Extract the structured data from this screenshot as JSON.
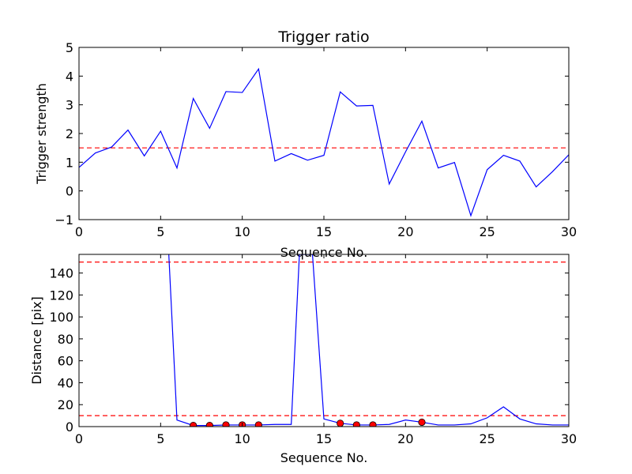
{
  "chart_data": [
    {
      "type": "line",
      "title": "Trigger ratio",
      "xlabel": "Sequence No.",
      "ylabel": "Trigger strength",
      "xlim": [
        0,
        30
      ],
      "ylim": [
        -1,
        5
      ],
      "xticks": [
        0,
        5,
        10,
        15,
        20,
        25,
        30
      ],
      "yticks": [
        -1,
        0,
        1,
        2,
        3,
        4,
        5
      ],
      "xtick_labels": [
        "0",
        "5",
        "10",
        "15",
        "20",
        "25",
        "30"
      ],
      "ytick_labels": [
        "−1",
        "0",
        "1",
        "2",
        "3",
        "4",
        "5"
      ],
      "grid": false,
      "series": [
        {
          "color": "#0000ff",
          "x": [
            0,
            1,
            2,
            3,
            4,
            5,
            6,
            7,
            8,
            9,
            10,
            11,
            12,
            13,
            14,
            15,
            16,
            17,
            18,
            19,
            20,
            21,
            22,
            23,
            24,
            25,
            26,
            27,
            28,
            29,
            30
          ],
          "values": [
            0.82,
            1.32,
            1.53,
            2.12,
            1.22,
            2.08,
            0.8,
            3.22,
            2.18,
            3.46,
            3.43,
            4.25,
            1.04,
            1.3,
            1.07,
            1.24,
            3.45,
            2.96,
            2.98,
            0.24,
            1.36,
            2.43,
            0.8,
            0.99,
            -0.86,
            0.74,
            1.24,
            1.04,
            0.14,
            0.67,
            1.26
          ]
        }
      ],
      "hlines": [
        {
          "y": 1.5,
          "color": "#ff0000",
          "style": "dashed"
        }
      ]
    },
    {
      "type": "line",
      "title": "",
      "xlabel": "Sequence No.",
      "ylabel": "Distance [pix]",
      "xlim": [
        0,
        30
      ],
      "ylim": [
        0,
        157
      ],
      "xticks": [
        0,
        5,
        10,
        15,
        20,
        25,
        30
      ],
      "yticks": [
        0,
        20,
        40,
        60,
        80,
        100,
        120,
        140
      ],
      "xtick_labels": [
        "0",
        "5",
        "10",
        "15",
        "20",
        "25",
        "30"
      ],
      "ytick_labels": [
        "0",
        "20",
        "40",
        "60",
        "80",
        "100",
        "120",
        "140"
      ],
      "grid": false,
      "series": [
        {
          "color": "#0000ff",
          "x": [
            5.5,
            6,
            7,
            8,
            9,
            10,
            11,
            12,
            13,
            13.5,
            14.3,
            15,
            16,
            17,
            18,
            19,
            20,
            21,
            22,
            23,
            24,
            25,
            26,
            27,
            28,
            29,
            30
          ],
          "values": [
            157,
            6,
            1,
            1,
            1.5,
            1.5,
            1.5,
            2,
            2,
            157,
            157,
            7,
            3,
            1.5,
            1.5,
            2,
            6,
            4,
            1.5,
            1.5,
            2.5,
            8,
            18,
            7,
            2.5,
            1.5,
            1.5
          ]
        },
        {
          "color": "#ff0000",
          "marker": "circle",
          "x": [
            7,
            8,
            9,
            10,
            11,
            16,
            17,
            18,
            21
          ],
          "values": [
            1,
            1,
            1.5,
            1.5,
            1.5,
            3,
            1.5,
            1.5,
            4
          ]
        }
      ],
      "hlines": [
        {
          "y": 150,
          "color": "#ff0000",
          "style": "dashed"
        },
        {
          "y": 10,
          "color": "#ff0000",
          "style": "dashed"
        }
      ]
    }
  ]
}
